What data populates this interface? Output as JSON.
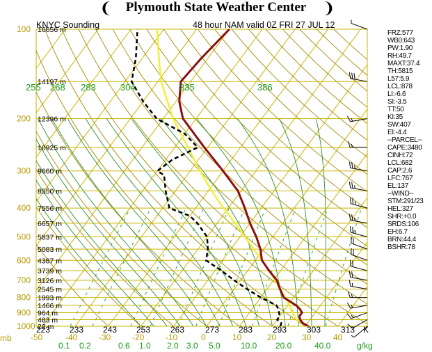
{
  "header": {
    "title": "Plymouth State Weather Center",
    "flag_left": "❨",
    "flag_right": "❩"
  },
  "colors": {
    "grid": "#c8b400",
    "dry_adiabat": "#a08a00",
    "moist_adiabat": "#2a8c2a",
    "mixing_ratio": "#1f9b1f",
    "temperature": "#8b0f0f",
    "parcel": "#f2ef38",
    "dewpoint": "#000000",
    "axis_text": "#b89a00",
    "green_text": "#1a9a1a"
  },
  "sounding": {
    "station": "KNYC Sounding",
    "valid": "48 hour NAM valid 0Z FRI 27 JUL 12"
  },
  "chart_data": {
    "type": "line",
    "title": "KNYC Sounding",
    "subtitle": "48 hour NAM valid 0Z FRI 27 JUL 12",
    "pressure_levels": [
      "100",
      "200",
      "300",
      "400",
      "500",
      "600",
      "700",
      "800",
      "900",
      "1000"
    ],
    "pressure_unit": "mb",
    "temperature_ticks": [
      "-50",
      "-40",
      "-30",
      "-20",
      "-10",
      "0",
      "10",
      "20",
      "30",
      "40"
    ],
    "mixing_ratio_ticks": [
      "0.1",
      "0.2",
      "0.6",
      "1.0",
      "2.0",
      "3.0",
      "5.0",
      "10.0",
      "20.0",
      "40.0"
    ],
    "mixing_ratio_unit": "g/kg",
    "theta_e_top_labels": [
      "255",
      "268",
      "283",
      "304",
      "335",
      "386"
    ],
    "theta_bottom_labels": [
      "223",
      "233",
      "243",
      "253",
      "263",
      "273",
      "283",
      "293",
      "303",
      "313"
    ],
    "theta_bottom_unit": "K",
    "height_labels": [
      {
        "p": 100,
        "text": "16656 m"
      },
      {
        "p": 150,
        "text": "14197 m"
      },
      {
        "p": 200,
        "text": "12396 m"
      },
      {
        "p": 250,
        "text": "10925 m"
      },
      {
        "p": 300,
        "text": "9660 m"
      },
      {
        "p": 350,
        "text": "8550 m"
      },
      {
        "p": 400,
        "text": "7556 m"
      },
      {
        "p": 450,
        "text": "6657 m"
      },
      {
        "p": 500,
        "text": "5837 m"
      },
      {
        "p": 550,
        "text": "5083 m"
      },
      {
        "p": 600,
        "text": "4387 m"
      },
      {
        "p": 650,
        "text": "3739 m"
      },
      {
        "p": 700,
        "text": "3126 m"
      },
      {
        "p": 750,
        "text": "2545 m"
      },
      {
        "p": 800,
        "text": "1993 m"
      },
      {
        "p": 850,
        "text": "1466 m"
      },
      {
        "p": 900,
        "text": "964 m"
      },
      {
        "p": 950,
        "text": "483 m"
      },
      {
        "p": 1000,
        "text": "22 m"
      }
    ],
    "series": [
      {
        "key": "temperature",
        "points": [
          [
            1000,
            31
          ],
          [
            975,
            28.5
          ],
          [
            950,
            27
          ],
          [
            925,
            26
          ],
          [
            900,
            26
          ],
          [
            875,
            24.5
          ],
          [
            850,
            22.5
          ],
          [
            800,
            17
          ],
          [
            750,
            14
          ],
          [
            700,
            11
          ],
          [
            650,
            6.5
          ],
          [
            600,
            2
          ],
          [
            550,
            -1
          ],
          [
            500,
            -5
          ],
          [
            450,
            -10
          ],
          [
            400,
            -15
          ],
          [
            350,
            -21
          ],
          [
            300,
            -30
          ],
          [
            250,
            -41
          ],
          [
            200,
            -54
          ],
          [
            175,
            -59
          ],
          [
            150,
            -63
          ],
          [
            125,
            -62
          ],
          [
            100,
            -60
          ]
        ]
      },
      {
        "key": "dewpoint",
        "points": [
          [
            1000,
            22.5
          ],
          [
            975,
            22
          ],
          [
            950,
            20
          ],
          [
            925,
            20
          ],
          [
            900,
            19
          ],
          [
            875,
            18
          ],
          [
            850,
            16.5
          ],
          [
            800,
            10
          ],
          [
            750,
            4
          ],
          [
            700,
            -2
          ],
          [
            650,
            -8
          ],
          [
            600,
            -15
          ],
          [
            550,
            -17
          ],
          [
            500,
            -20
          ],
          [
            450,
            -26
          ],
          [
            425,
            -30
          ],
          [
            400,
            -38
          ],
          [
            350,
            -43
          ],
          [
            310,
            -47
          ],
          [
            300,
            -50
          ],
          [
            275,
            -48
          ],
          [
            250,
            -43
          ],
          [
            225,
            -50
          ],
          [
            200,
            -62
          ],
          [
            175,
            -70
          ],
          [
            150,
            -78
          ],
          [
            125,
            -82
          ],
          [
            100,
            -88
          ]
        ]
      },
      {
        "key": "parcel",
        "points": [
          [
            1000,
            31
          ],
          [
            950,
            26
          ],
          [
            900,
            23
          ],
          [
            850,
            20.5
          ],
          [
            800,
            17.5
          ],
          [
            750,
            14
          ],
          [
            700,
            10.5
          ],
          [
            650,
            6.5
          ],
          [
            600,
            2
          ],
          [
            550,
            -3
          ],
          [
            500,
            -8.5
          ],
          [
            450,
            -14.5
          ],
          [
            400,
            -21.5
          ],
          [
            350,
            -29
          ],
          [
            300,
            -37
          ],
          [
            250,
            -46
          ],
          [
            200,
            -57
          ],
          [
            150,
            -69
          ],
          [
            125,
            -75
          ],
          [
            100,
            -82
          ]
        ]
      }
    ],
    "wind_barbs": [
      {
        "p": 100,
        "dir": 290,
        "spd": 5
      },
      {
        "p": 150,
        "dir": 280,
        "spd": 30
      },
      {
        "p": 200,
        "dir": 260,
        "spd": 15
      },
      {
        "p": 250,
        "dir": 270,
        "spd": 15
      },
      {
        "p": 300,
        "dir": 280,
        "spd": 25
      },
      {
        "p": 350,
        "dir": 280,
        "spd": 25
      },
      {
        "p": 400,
        "dir": 285,
        "spd": 25
      },
      {
        "p": 450,
        "dir": 280,
        "spd": 25
      },
      {
        "p": 500,
        "dir": 285,
        "spd": 25
      },
      {
        "p": 550,
        "dir": 290,
        "spd": 20
      },
      {
        "p": 600,
        "dir": 290,
        "spd": 20
      },
      {
        "p": 650,
        "dir": 285,
        "spd": 20
      },
      {
        "p": 700,
        "dir": 280,
        "spd": 20
      },
      {
        "p": 750,
        "dir": 280,
        "spd": 15
      },
      {
        "p": 800,
        "dir": 270,
        "spd": 15
      },
      {
        "p": 850,
        "dir": 260,
        "spd": 15
      },
      {
        "p": 900,
        "dir": 250,
        "spd": 15
      },
      {
        "p": 950,
        "dir": 240,
        "spd": 10
      },
      {
        "p": 1000,
        "dir": 230,
        "spd": 5
      }
    ]
  },
  "indices": [
    "FRZ:577",
    "WB0:643",
    "PW:1.90",
    "RH:49.7",
    "MAXT:37.4",
    "TH:5815",
    "L57:5.9",
    "LCL:878",
    "LI:-6.6",
    "SI:-3.5",
    "TT:50",
    "KI:35",
    "SW:407",
    "EI:-4.4",
    "--PARCEL--",
    "CAPE:3480",
    "CINH:72",
    "LCL:682",
    "CAP:2.6",
    "LFC:767",
    "EL:137",
    "--WIND--",
    "STM:291/23",
    "HEL:327",
    "SHR:+0.0",
    "SRDS:106",
    "EH:6.7",
    "BRN:44.4",
    "BSHR:78"
  ]
}
